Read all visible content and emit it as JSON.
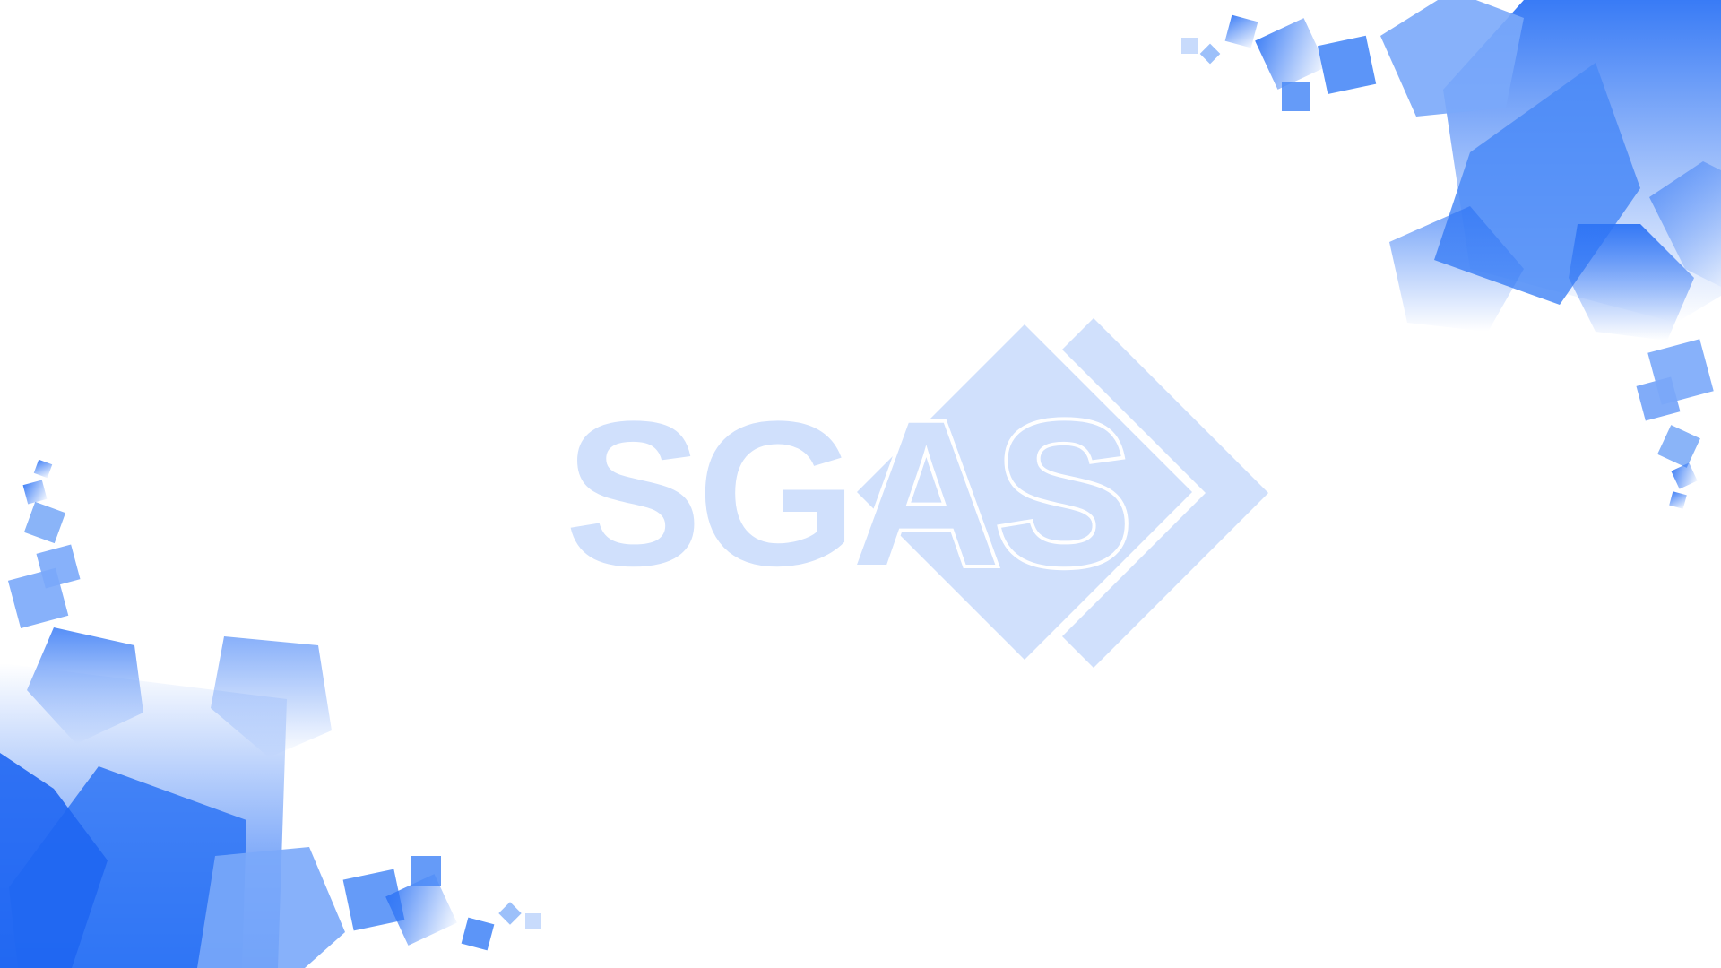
{
  "logo": {
    "text": "SGAS",
    "color": "#d0e0fc"
  },
  "decor": {
    "accent": "#3b82f6",
    "accent_light": "#8ab4f8",
    "accent_dark": "#1a63f0"
  }
}
